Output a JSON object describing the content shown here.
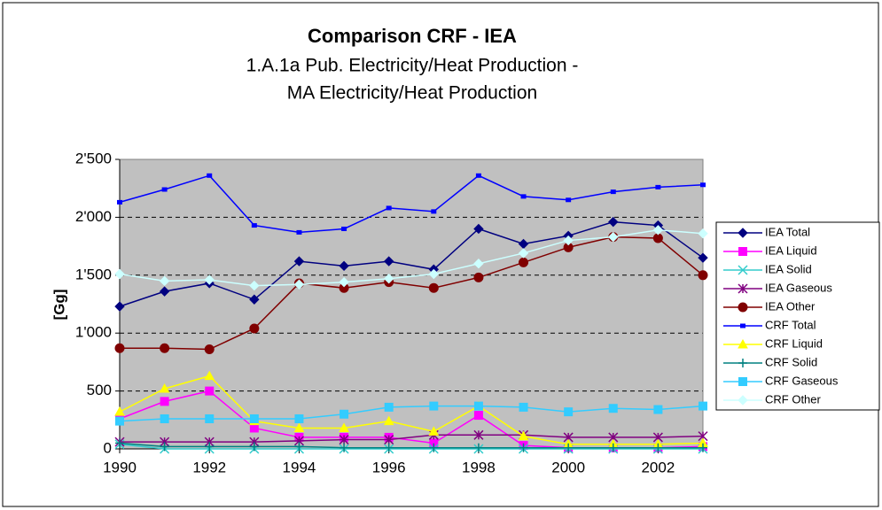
{
  "chart_data": {
    "type": "line",
    "title": "Comparison CRF - IEA",
    "subtitle": [
      "1.A.1a Pub. Electricity/Heat Production -",
      "MA Electricity/Heat Production"
    ],
    "ylabel": "[Gg]",
    "x": [
      1990,
      1991,
      1992,
      1993,
      1994,
      1995,
      1996,
      1997,
      1998,
      1999,
      2000,
      2001,
      2002,
      2003
    ],
    "xlim": [
      1990,
      2003
    ],
    "xticks": [
      1990,
      1992,
      1994,
      1996,
      1998,
      2000,
      2002
    ],
    "ylim": [
      0,
      2500
    ],
    "yticks": [
      0,
      500,
      {
        "value": 1000,
        "label": "1'000"
      },
      {
        "value": 1500,
        "label": "1'500"
      },
      {
        "value": 2000,
        "label": "2'000"
      },
      {
        "value": 2500,
        "label": "2'500"
      }
    ],
    "grid": true,
    "legend": "right",
    "series": [
      {
        "name": "IEA Total",
        "color": "#000080",
        "marker": "diamond",
        "values": [
          1230,
          1360,
          1430,
          1290,
          1620,
          1580,
          1620,
          1550,
          1900,
          1770,
          1840,
          1960,
          1930,
          1650
        ]
      },
      {
        "name": "IEA Liquid",
        "color": "#ff00ff",
        "marker": "square",
        "values": [
          260,
          410,
          500,
          180,
          100,
          100,
          100,
          50,
          290,
          30,
          10,
          10,
          10,
          20
        ]
      },
      {
        "name": "IEA Solid",
        "color": "#33cccc",
        "marker": "x",
        "values": [
          40,
          0,
          0,
          0,
          0,
          0,
          0,
          0,
          0,
          0,
          0,
          0,
          0,
          0
        ]
      },
      {
        "name": "IEA Gaseous",
        "color": "#800080",
        "marker": "star",
        "values": [
          60,
          60,
          60,
          60,
          70,
          80,
          80,
          120,
          120,
          120,
          100,
          100,
          100,
          110
        ]
      },
      {
        "name": "IEA Other",
        "color": "#800000",
        "marker": "circle",
        "values": [
          870,
          870,
          860,
          1040,
          1430,
          1390,
          1440,
          1390,
          1480,
          1610,
          1740,
          1830,
          1820,
          1500
        ]
      },
      {
        "name": "CRF Total",
        "color": "#0000ff",
        "marker": "smallsquare",
        "values": [
          2130,
          2240,
          2360,
          1930,
          1870,
          1900,
          2080,
          2050,
          2360,
          2180,
          2150,
          2220,
          2260,
          2280
        ]
      },
      {
        "name": "CRF Liquid",
        "color": "#ffff00",
        "marker": "triangle",
        "values": [
          320,
          520,
          630,
          240,
          180,
          180,
          240,
          150,
          370,
          110,
          40,
          40,
          40,
          50
        ]
      },
      {
        "name": "CRF Solid",
        "color": "#008080",
        "marker": "plus",
        "values": [
          50,
          20,
          20,
          20,
          20,
          10,
          10,
          10,
          10,
          10,
          10,
          10,
          10,
          10
        ]
      },
      {
        "name": "CRF Gaseous",
        "color": "#33ccff",
        "marker": "square",
        "values": [
          240,
          260,
          260,
          260,
          260,
          300,
          360,
          370,
          370,
          360,
          320,
          350,
          340,
          370
        ]
      },
      {
        "name": "CRF Other",
        "color": "#ccffff",
        "marker": "diamond",
        "values": [
          1510,
          1450,
          1460,
          1410,
          1420,
          1440,
          1470,
          1510,
          1600,
          1690,
          1800,
          1830,
          1890,
          1860
        ]
      }
    ]
  }
}
